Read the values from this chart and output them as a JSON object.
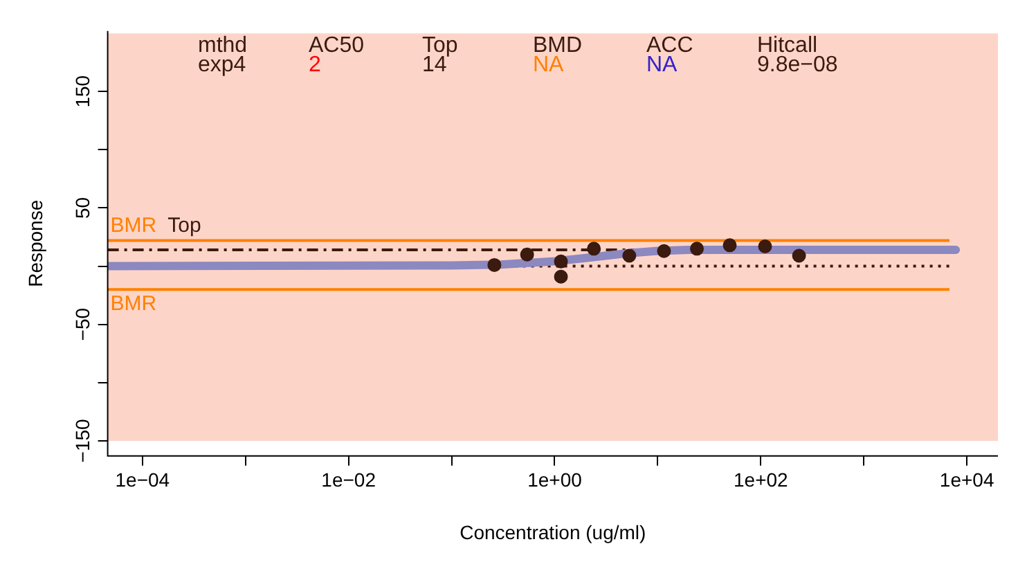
{
  "chart_data": {
    "type": "scatter",
    "xlabel": "Concentration (ug/ml)",
    "ylabel": "Response",
    "log": "x",
    "xlim": [
      4.6e-05,
      20000
    ],
    "ylim": [
      -163,
      202
    ],
    "xticks": [
      {
        "value": 0.0001,
        "label": "1e−04"
      },
      {
        "value": 0.001,
        "label": null
      },
      {
        "value": 0.01,
        "label": "1e−02"
      },
      {
        "value": 0.1,
        "label": null
      },
      {
        "value": 1,
        "label": "1e+00"
      },
      {
        "value": 10,
        "label": null
      },
      {
        "value": 100,
        "label": "1e+02"
      },
      {
        "value": 1000,
        "label": null
      },
      {
        "value": 10000,
        "label": "1e+04"
      }
    ],
    "yticks": [
      {
        "value": -150,
        "label": "−150"
      },
      {
        "value": -100,
        "label": null
      },
      {
        "value": -50,
        "label": "−50"
      },
      {
        "value": 0,
        "label": null
      },
      {
        "value": 50,
        "label": "50"
      },
      {
        "value": 100,
        "label": null
      },
      {
        "value": 150,
        "label": "150"
      }
    ],
    "grid": false,
    "legend": false,
    "marker": "circle",
    "series": [
      {
        "type": "scatter",
        "color": "#3b1a10",
        "x": [
          0.26,
          0.54,
          1.15,
          1.15,
          2.4,
          5.3,
          11.5,
          24,
          50,
          110,
          235
        ],
        "values": [
          1,
          10,
          4,
          -9,
          15,
          9,
          13,
          15,
          18,
          17,
          9
        ]
      },
      {
        "type": "line",
        "color": "#8c88c0",
        "marker": "none",
        "x": [
          4.6e-05,
          0.1,
          0.3,
          1,
          2,
          3,
          5,
          10,
          20,
          100,
          7800
        ],
        "values": [
          0,
          0.7,
          1.4,
          4.2,
          7,
          8.8,
          11,
          13.2,
          14,
          14,
          14
        ]
      }
    ],
    "bands": [
      {
        "axis": "y",
        "from": -150,
        "to": 200,
        "color": "#fdd5c8"
      }
    ],
    "ref_lines": [
      {
        "axis": "y",
        "value": 22,
        "label": "BMR",
        "color": "#ff8000"
      },
      {
        "axis": "y",
        "value": -20,
        "label": "BMR",
        "color": "#ff8000"
      },
      {
        "axis": "y",
        "value": 14,
        "label": "Top",
        "color": "#3b1a10",
        "line_style": "dashdot"
      },
      {
        "axis": "y",
        "value": 0,
        "color": "#3b1a10",
        "line_style": "dotted"
      }
    ],
    "annotations": [
      "mthd",
      "AC50",
      "Top",
      "BMD",
      "ACC",
      "Hitcall",
      "exp4",
      "2",
      "14",
      "NA",
      "NA",
      "9.8e−08"
    ]
  }
}
